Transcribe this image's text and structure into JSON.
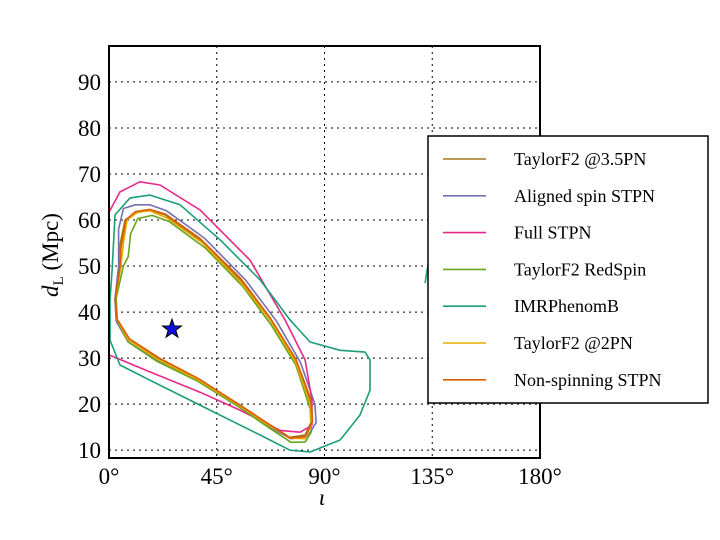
{
  "chart_data": {
    "type": "line",
    "title": "",
    "xlabel": "ι",
    "ylabel_main": "d",
    "ylabel_sub": "L",
    "ylabel_unit": " (Mpc)",
    "xlim": [
      0,
      180
    ],
    "ylim": [
      8.3,
      97.8
    ],
    "xticks": [
      0,
      45,
      90,
      135,
      180
    ],
    "xtick_labels": [
      "0°",
      "45°",
      "90°",
      "135°",
      "180°"
    ],
    "yticks": [
      10,
      20,
      30,
      40,
      50,
      60,
      70,
      80,
      90
    ],
    "ytick_labels": [
      "10",
      "20",
      "30",
      "40",
      "50",
      "60",
      "70",
      "80",
      "90"
    ],
    "grid": true,
    "legend_position": "right",
    "marker": {
      "name": "injection",
      "shape": "star",
      "x": 26.3,
      "y": 36.3,
      "color": "#1010e0"
    },
    "series": [
      {
        "name": "TaylorF2 @3.5PN",
        "color": "#a6761d",
        "contours": [
          [
            [
              4.6,
              54.6
            ],
            [
              6.7,
              60
            ],
            [
              10.9,
              61.5
            ],
            [
              17.1,
              62.2
            ],
            [
              23.4,
              61.1
            ],
            [
              38,
              55.7
            ],
            [
              54.7,
              47
            ],
            [
              67.3,
              38.3
            ],
            [
              77.7,
              29.6
            ],
            [
              84,
              20.9
            ],
            [
              84.8,
              16.5
            ],
            [
              81.9,
              13.3
            ],
            [
              75.6,
              12.8
            ],
            [
              67.3,
              15.4
            ],
            [
              54.7,
              19.8
            ],
            [
              38,
              25.2
            ],
            [
              21.3,
              29.6
            ],
            [
              8.8,
              33.9
            ],
            [
              3.3,
              38.3
            ],
            [
              2.5,
              42.6
            ],
            [
              4.6,
              49.1
            ]
          ]
        ]
      },
      {
        "name": "Aligned spin STPN",
        "color": "#7570b3",
        "contours": [
          [
            [
              4,
              58
            ],
            [
              6,
              62.5
            ],
            [
              11,
              63.3
            ],
            [
              17,
              63.3
            ],
            [
              24,
              62
            ],
            [
              40,
              56
            ],
            [
              57,
              47
            ],
            [
              70,
              38
            ],
            [
              80,
              29
            ],
            [
              86,
              20
            ],
            [
              86.5,
              16
            ],
            [
              83,
              13
            ],
            [
              76,
              12.5
            ],
            [
              67,
              15
            ],
            [
              54,
              19.5
            ],
            [
              37,
              25
            ],
            [
              20,
              29.5
            ],
            [
              8,
              33.5
            ],
            [
              3,
              38
            ],
            [
              2.5,
              43
            ],
            [
              4,
              50
            ]
          ]
        ]
      },
      {
        "name": "Full STPN",
        "color": "#e7298a",
        "contours": [
          [
            [
              0,
              61.7
            ],
            [
              4.6,
              66.1
            ],
            [
              12.9,
              68.3
            ],
            [
              21.3,
              67.6
            ],
            [
              38,
              62.2
            ],
            [
              58.9,
              51.3
            ],
            [
              73.5,
              38.3
            ],
            [
              81.9,
              29.6
            ],
            [
              84.8,
              20.9
            ],
            [
              84.8,
              15.4
            ],
            [
              79.8,
              13.9
            ],
            [
              71.4,
              14.3
            ],
            [
              54.7,
              18.7
            ],
            [
              38,
              22.6
            ],
            [
              17.1,
              27
            ],
            [
              0,
              30.7
            ]
          ]
        ]
      },
      {
        "name": "TaylorF2 RedSpin",
        "color": "#66a61e",
        "contours": [
          [
            [
              8,
              52
            ],
            [
              9,
              57
            ],
            [
              12,
              60.3
            ],
            [
              18,
              61
            ],
            [
              25,
              59.7
            ],
            [
              40,
              54
            ],
            [
              56,
              45.5
            ],
            [
              68,
              37
            ],
            [
              78,
              28.5
            ],
            [
              84,
              19
            ],
            [
              84.5,
              14
            ],
            [
              82,
              11.8
            ],
            [
              76,
              11.7
            ],
            [
              67,
              14.8
            ],
            [
              54,
              19.5
            ],
            [
              37,
              25
            ],
            [
              20,
              29.3
            ],
            [
              8,
              33.5
            ],
            [
              3.5,
              38
            ],
            [
              3,
              43
            ],
            [
              6,
              50
            ]
          ]
        ]
      },
      {
        "name": "IMRPhenomB",
        "color": "#1b9e77",
        "contours": [
          [
            [
              1.3,
              49.1
            ],
            [
              2.5,
              61.1
            ],
            [
              8.8,
              64.8
            ],
            [
              17.1,
              65.4
            ],
            [
              29.7,
              63.3
            ],
            [
              46.4,
              55.7
            ],
            [
              63.1,
              47
            ],
            [
              75.6,
              38.3
            ],
            [
              84,
              33.5
            ],
            [
              96.5,
              31.7
            ],
            [
              106.9,
              31.3
            ],
            [
              109,
              29.6
            ],
            [
              109,
              23
            ],
            [
              104.8,
              17.6
            ],
            [
              96.5,
              12.2
            ],
            [
              84,
              9.6
            ],
            [
              75.6,
              10
            ],
            [
              63.1,
              13.3
            ],
            [
              38,
              19.8
            ],
            [
              17.1,
              25.2
            ],
            [
              4.6,
              28.5
            ],
            [
              0.4,
              33.9
            ],
            [
              0.4,
              42.6
            ]
          ],
          [
            [
              132,
              46.3
            ],
            [
              133,
              49.6
            ],
            [
              135,
              50.9
            ]
          ]
        ]
      },
      {
        "name": "TaylorF2 @2PN",
        "color": "#e6ab02",
        "contours": [
          [
            [
              6,
              55
            ],
            [
              7.5,
              60
            ],
            [
              12,
              61.7
            ],
            [
              17,
              62
            ],
            [
              24,
              60.5
            ],
            [
              39,
              55
            ],
            [
              55,
              46.5
            ],
            [
              68,
              37.8
            ],
            [
              78,
              29
            ],
            [
              84,
              20
            ],
            [
              84.5,
              15.5
            ],
            [
              82,
              12.5
            ],
            [
              76,
              12.6
            ],
            [
              67,
              15.3
            ],
            [
              54,
              19.8
            ],
            [
              37,
              25.3
            ],
            [
              20,
              29.8
            ],
            [
              8,
              34
            ],
            [
              3.2,
              38.5
            ],
            [
              2.7,
              43
            ],
            [
              5,
              50
            ]
          ]
        ]
      },
      {
        "name": "Non-spinning STPN",
        "color": "#d95f02",
        "contours": [
          [
            [
              5,
              54
            ],
            [
              7,
              60
            ],
            [
              11,
              61.8
            ],
            [
              17,
              62.3
            ],
            [
              23.5,
              61.3
            ],
            [
              38,
              56
            ],
            [
              55,
              47.3
            ],
            [
              67.5,
              38.6
            ],
            [
              78,
              29.8
            ],
            [
              84.3,
              21
            ],
            [
              85,
              16.3
            ],
            [
              82,
              13
            ],
            [
              75.5,
              12.6
            ],
            [
              67,
              15.6
            ],
            [
              54,
              20
            ],
            [
              37.5,
              25.5
            ],
            [
              21,
              30
            ],
            [
              8.5,
              34.2
            ],
            [
              3.2,
              38.6
            ],
            [
              2.6,
              43
            ],
            [
              4.5,
              49.5
            ]
          ]
        ]
      }
    ]
  }
}
